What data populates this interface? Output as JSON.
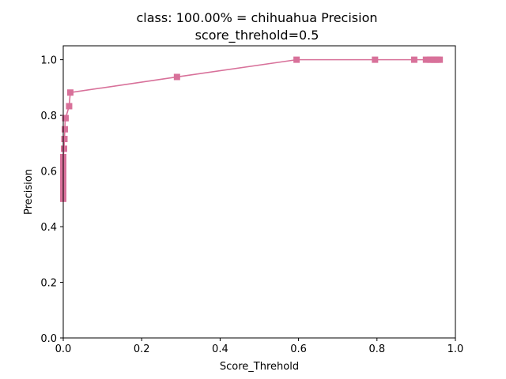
{
  "chart_data": {
    "type": "line",
    "title": "class: 100.00% = chihuahua Precision",
    "subtitle": "score_threhold=0.5",
    "xlabel": "Score_Threhold",
    "ylabel": "Precision",
    "xlim": [
      0.0,
      1.0
    ],
    "ylim": [
      0.0,
      1.05
    ],
    "xticks": [
      "0.0",
      "0.2",
      "0.4",
      "0.6",
      "0.8",
      "1.0"
    ],
    "yticks": [
      "0.0",
      "0.2",
      "0.4",
      "0.6",
      "0.8",
      "1.0"
    ],
    "grid": false,
    "legend": "none",
    "color": "#d8719a",
    "marker": "square",
    "x": [
      0.0,
      0.0,
      0.0,
      0.0,
      0.0,
      0.0,
      0.0,
      0.0,
      0.0,
      0.0,
      0.0,
      0.0,
      0.0,
      0.0,
      0.0,
      0.002,
      0.003,
      0.004,
      0.005,
      0.006,
      0.015,
      0.018,
      0.29,
      0.595,
      0.795,
      0.895,
      0.925,
      0.935,
      0.94,
      0.945,
      0.95,
      0.955,
      0.96
    ],
    "y": [
      0.5,
      0.51,
      0.52,
      0.53,
      0.54,
      0.55,
      0.56,
      0.57,
      0.58,
      0.59,
      0.6,
      0.61,
      0.62,
      0.63,
      0.65,
      0.68,
      0.715,
      0.75,
      0.79,
      0.79,
      0.833,
      0.882,
      0.938,
      1.0,
      1.0,
      1.0,
      1.0,
      1.0,
      1.0,
      1.0,
      1.0,
      1.0,
      1.0
    ]
  }
}
